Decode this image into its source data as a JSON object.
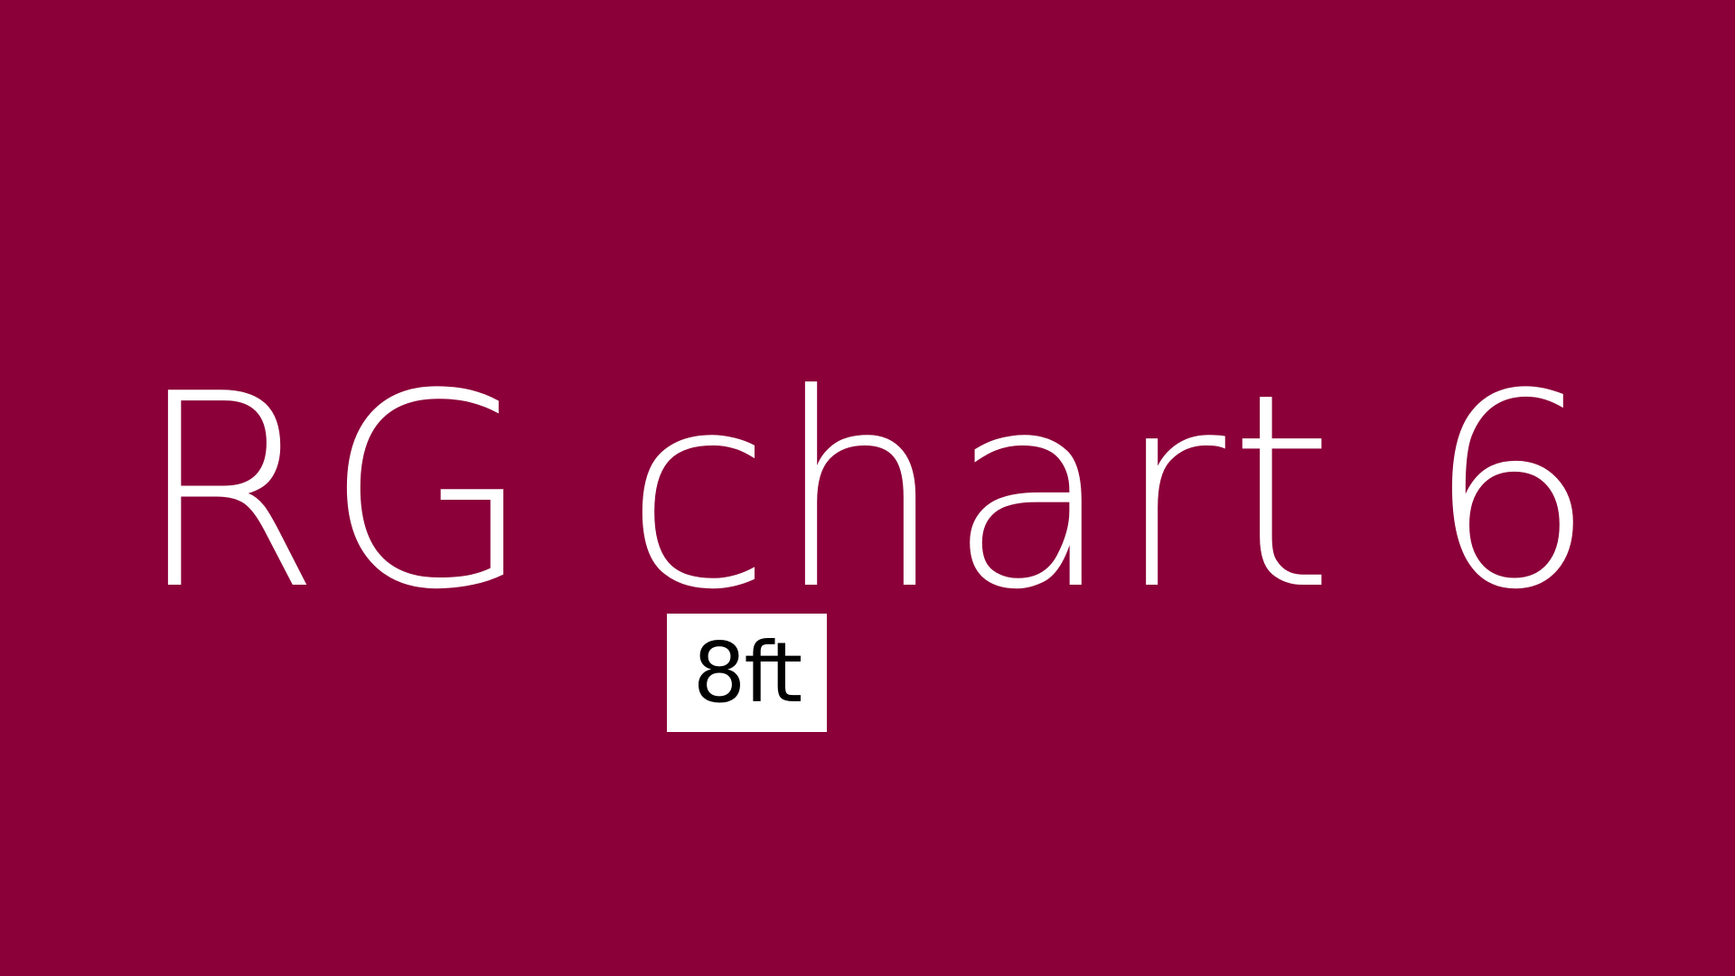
{
  "screen": {
    "title": "RG chart 6",
    "badge": "8ft",
    "background_color": "#8b0039",
    "title_color": "#ffffff",
    "badge_background": "#ffffff",
    "badge_text_color": "#000000"
  }
}
